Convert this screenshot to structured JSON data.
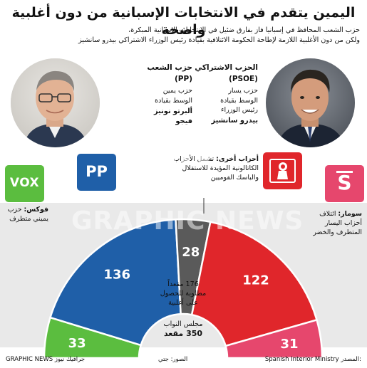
{
  "header": {
    "title": "اليمين يتقدم في الانتخابات الإسبانية من دون أغلبية واضحة",
    "subtitle_line1": "حزب الشعب المحافظ في إسبانيا فاز بفارق ضئيل في الانتخابات الإسبانية المبكرة،",
    "subtitle_line2": "ولكن من دون الأغلبية اللازمة لإطاحة الحكومة الائتلافية بقيادة رئيس الوزراء الاشتراكي بيدرو سانشيز"
  },
  "parties": {
    "pp": {
      "name": "حزب الشعب",
      "abbr": "(PP)",
      "desc1": "حزب يمين",
      "desc2": "الوسط بقيادة",
      "leader1": "ألبرتو نونيز",
      "leader2": "فيجو",
      "logo_text": "PP",
      "color": "#1f5fa8"
    },
    "psoe": {
      "name": "الحزب الاشتراكي",
      "abbr": "(PSOE)",
      "desc1": "حزب يسار",
      "desc2": "الوسط بقيادة",
      "desc3": "رئيس الوزراء",
      "leader1": "بيدرو سانشيز",
      "color": "#e0262b"
    },
    "vox": {
      "logo_text": "VOX",
      "label_bold": "فوكس:",
      "label_rest": "حزب",
      "label_line2": "يميني متطرف",
      "color": "#5bbd3f"
    },
    "sumar": {
      "logo_text": "S",
      "label_bold": "سومار:",
      "label_rest": "ائتلاف",
      "label_line2": "أحزاب اليسار",
      "label_line3": "المتطرف والخضر",
      "color": "#e6476d"
    },
    "others": {
      "label_bold": "أحزاب أخرى:",
      "label_rest": "تشمل الأحزاب",
      "label_line2": "الكاتالونية المؤيدة للاستقلال",
      "label_line3": "والباسك القوميين",
      "color": "#5a5a5a"
    }
  },
  "center": {
    "majority_line1": "176 مقعداً",
    "majority_line2": "مطلوبة للحصول",
    "majority_line3": "على أغلبية",
    "total_line1": "مجلس النواب",
    "total_line2": "350 مقعد"
  },
  "watermark": {
    "mono": "GN",
    "text": "GRAPHIC NEWS"
  },
  "footer": {
    "source_label": "المصدر:",
    "source": "Spanish Interior Ministry",
    "photos": "الصور: جتي",
    "credit": "GRAPHIC NEWS",
    "credit_ar": "جرافيك نيوز"
  },
  "chart_data": {
    "type": "pie",
    "subtype": "parliament-semicircle",
    "categories": [
      "فوكس",
      "حزب الشعب",
      "أحزاب أخرى",
      "الحزب الاشتراكي",
      "سومار"
    ],
    "values": [
      33,
      136,
      28,
      122,
      31
    ],
    "colors": [
      "#5bbd3f",
      "#1f5fa8",
      "#5a5a5a",
      "#e0262b",
      "#e6476d"
    ],
    "total": 350,
    "majority": 176
  }
}
